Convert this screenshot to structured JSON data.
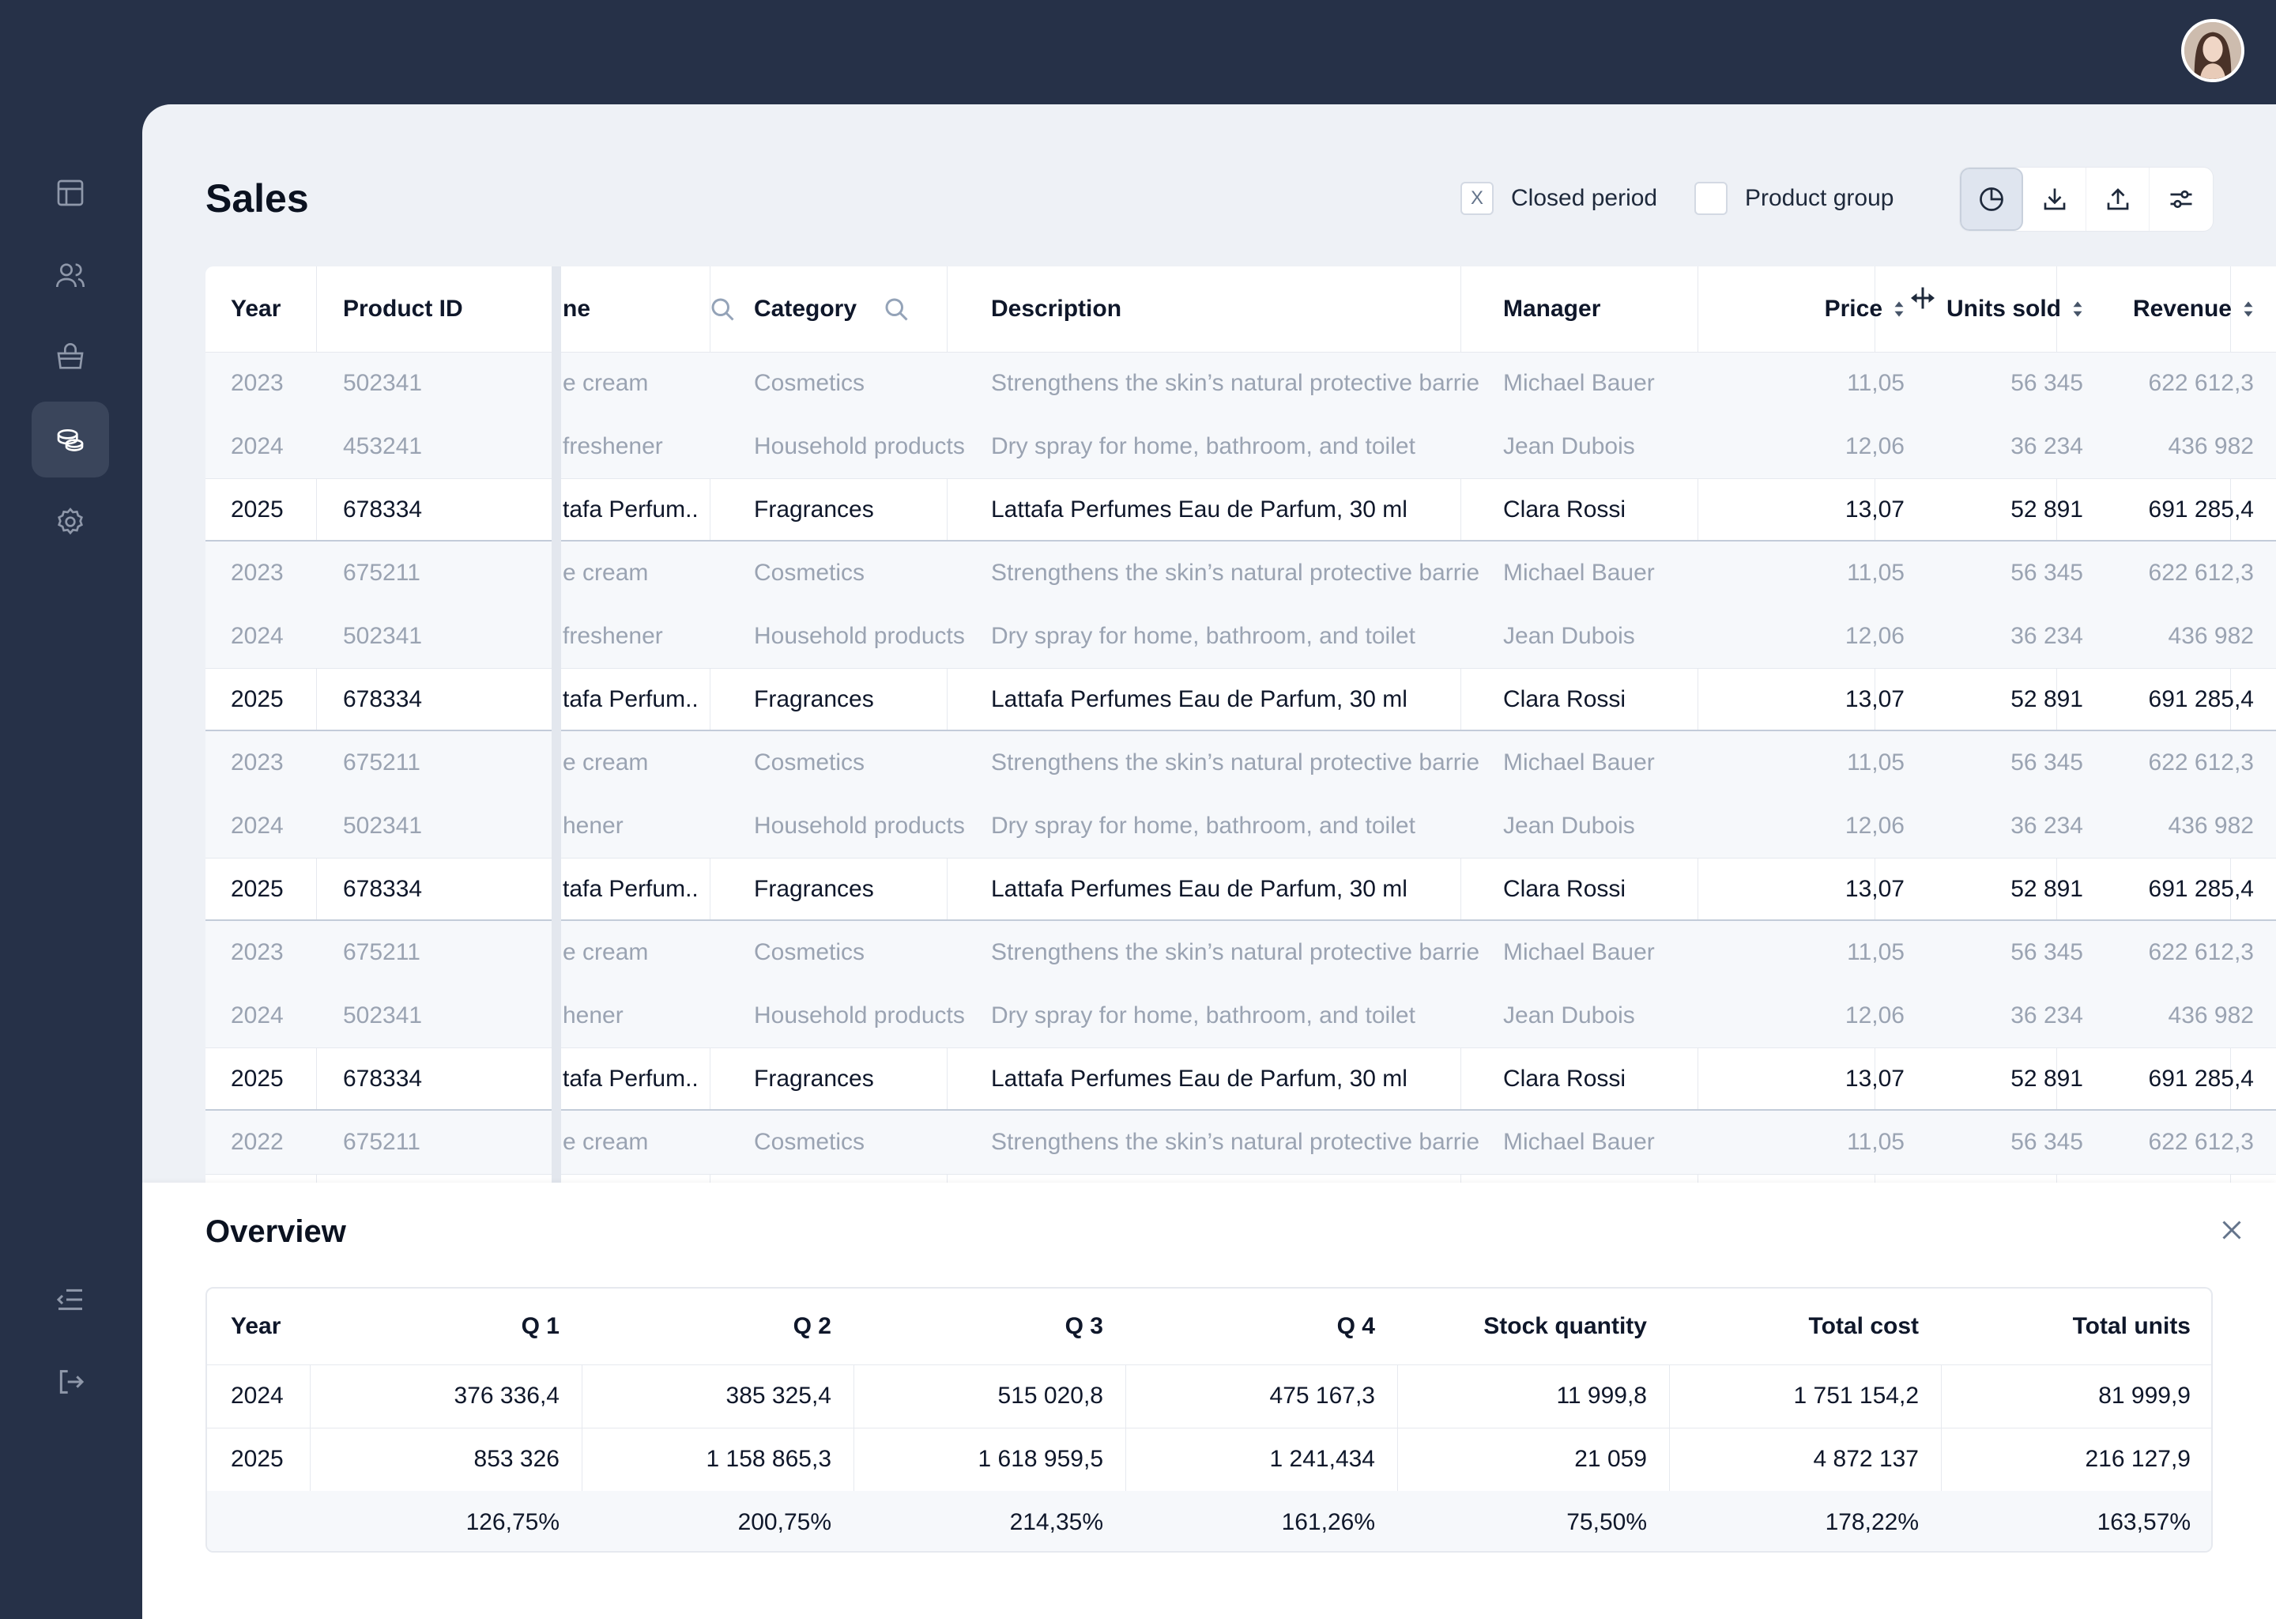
{
  "page": {
    "title": "Sales"
  },
  "filters": {
    "closed_period": {
      "label": "Closed period",
      "mark": "X"
    },
    "product_group": {
      "label": "Product group"
    }
  },
  "sales_table": {
    "headers": [
      "Year",
      "Product ID",
      "ne",
      "Category",
      "Description",
      "Manager",
      "Price",
      "Units sold",
      "Revenue"
    ],
    "rows": [
      [
        "2023",
        "502341",
        "e cream",
        "Cosmetics",
        "Strengthens the skin’s natural protective barrie",
        "Michael Bauer",
        "11,05",
        "56 345",
        "622 612,3"
      ],
      [
        "2024",
        "453241",
        "freshener",
        "Household products",
        "Dry spray for home, bathroom, and toilet",
        "Jean Dubois",
        "12,06",
        "36 234",
        "436 982"
      ],
      [
        "2025",
        "678334",
        "tafa Perfum...",
        "Fragrances",
        "Lattafa Perfumes Eau de Parfum, 30 ml",
        "Clara Rossi",
        "13,07",
        "52 891",
        "691 285,4"
      ],
      [
        "2023",
        "675211",
        "e cream",
        "Cosmetics",
        "Strengthens the skin’s natural protective barrie",
        "Michael Bauer",
        "11,05",
        "56 345",
        "622 612,3"
      ],
      [
        "2024",
        "502341",
        "freshener",
        "Household products",
        "Dry spray for home, bathroom, and toilet",
        "Jean Dubois",
        "12,06",
        "36 234",
        "436 982"
      ],
      [
        "2025",
        "678334",
        "tafa Perfum...",
        "Fragrances",
        "Lattafa Perfumes Eau de Parfum, 30 ml",
        "Clara Rossi",
        "13,07",
        "52 891",
        "691 285,4"
      ],
      [
        "2023",
        "675211",
        "e cream",
        "Cosmetics",
        "Strengthens the skin’s natural protective barrie",
        "Michael Bauer",
        "11,05",
        "56 345",
        "622 612,3"
      ],
      [
        "2024",
        "502341",
        "hener",
        "Household products",
        "Dry spray for home, bathroom, and toilet",
        "Jean Dubois",
        "12,06",
        "36 234",
        "436 982"
      ],
      [
        "2025",
        "678334",
        "tafa Perfum...",
        "Fragrances",
        "Lattafa Perfumes Eau de Parfum, 30 ml",
        "Clara Rossi",
        "13,07",
        "52 891",
        "691 285,4"
      ],
      [
        "2023",
        "675211",
        "e cream",
        "Cosmetics",
        "Strengthens the skin’s natural protective barrie",
        "Michael Bauer",
        "11,05",
        "56 345",
        "622 612,3"
      ],
      [
        "2024",
        "502341",
        "hener",
        "Household products",
        "Dry spray for home, bathroom, and toilet",
        "Jean Dubois",
        "12,06",
        "36 234",
        "436 982"
      ],
      [
        "2025",
        "678334",
        "tafa Perfum...",
        "Fragrances",
        "Lattafa Perfumes Eau de Parfum, 30 ml",
        "Clara Rossi",
        "13,07",
        "52 891",
        "691 285,4"
      ],
      [
        "2022",
        "675211",
        "e cream",
        "Cosmetics",
        "Strengthens the skin’s natural protective barrie",
        "Michael Bauer",
        "11,05",
        "56 345",
        "622 612,3"
      ]
    ]
  },
  "overview": {
    "title": "Overview",
    "headers": [
      "Year",
      "Q 1",
      "Q 2",
      "Q 3",
      "Q 4",
      "Stock quantity",
      "Total cost",
      "Total units"
    ],
    "rows": [
      [
        "2024",
        "376 336,4",
        "385 325,4",
        "515 020,8",
        "475 167,3",
        "11 999,8",
        "1 751 154,2",
        "81 999,9"
      ],
      [
        "2025",
        "853 326",
        "1 158 865,3",
        "1 618 959,5",
        "1 241,434",
        "21 059",
        "4 872 137",
        "216 127,9"
      ],
      [
        "",
        "126,75%",
        "200,75%",
        "214,35%",
        "161,26%",
        "75,50%",
        "178,22%",
        "163,57%"
      ]
    ]
  },
  "icons": {
    "sidebar": [
      "table-icon",
      "users-icon",
      "basket-icon",
      "coins-icon",
      "settings-icon",
      "collapse-menu-icon",
      "logout-icon"
    ],
    "toolbar": [
      "pie-chart-icon",
      "download-icon",
      "upload-icon",
      "sliders-icon"
    ]
  },
  "colors": {
    "sidebar": "#263148",
    "panel": "#eef1f6",
    "accent_active": "#3a455b"
  }
}
